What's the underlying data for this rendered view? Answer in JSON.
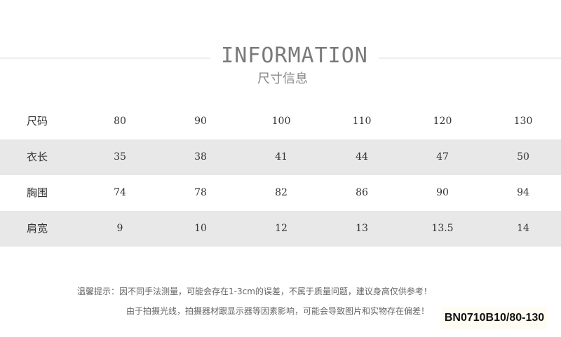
{
  "header": {
    "title": "INFORMATION",
    "subtitle": "尺寸信息"
  },
  "table": {
    "rows": [
      {
        "label": "尺码",
        "values": [
          "80",
          "90",
          "100",
          "110",
          "120",
          "130"
        ]
      },
      {
        "label": "衣长",
        "values": [
          "35",
          "38",
          "41",
          "44",
          "47",
          "50"
        ]
      },
      {
        "label": "胸围",
        "values": [
          "74",
          "78",
          "82",
          "86",
          "90",
          "94"
        ]
      },
      {
        "label": "肩宽",
        "values": [
          "9",
          "10",
          "12",
          "13",
          "13.5",
          "14"
        ]
      }
    ]
  },
  "notes": {
    "line1": "温馨提示：因不同手法测量，可能会存在1-3cm的误差，不属于质量问题，建议身高仅供参考！",
    "line2": "由于拍摄光线，拍摄器材跟显示器等因素影响，可能会导致图片和实物存在偏差！"
  },
  "sku_label": "BN0710B10/80-130",
  "colors": {
    "row_alt": "#e8e8e8",
    "title": "#7a7a7a"
  }
}
